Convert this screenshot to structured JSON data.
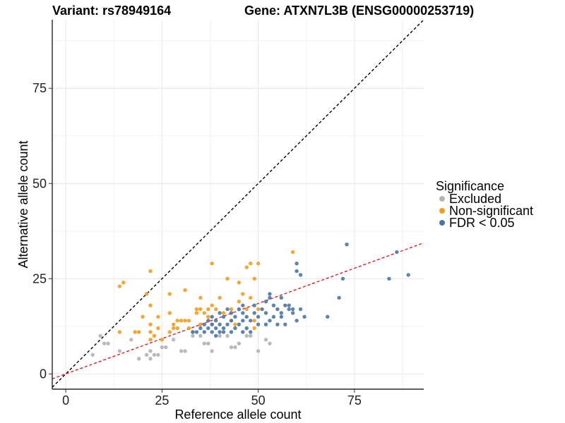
{
  "chart_data": {
    "type": "scatter",
    "title_left": "Variant: rs78949164",
    "title_right": "Gene: ATXN7L3B (ENSG00000253719)",
    "xlabel": "Reference allele count",
    "ylabel": "Alternative allele count",
    "xlim": [
      -3.5,
      93
    ],
    "ylim": [
      -4,
      93
    ],
    "xticks": [
      0,
      25,
      50,
      75
    ],
    "yticks": [
      0,
      25,
      50,
      75
    ],
    "grid": true,
    "reference_lines": [
      {
        "name": "identity",
        "slope": 1,
        "intercept": 0,
        "color": "#000000",
        "style": "dashed"
      },
      {
        "name": "fit",
        "slope": 0.37,
        "intercept": 0,
        "color": "#e41a1c",
        "style": "dashed"
      }
    ],
    "legend": {
      "title": "Significance",
      "position": "right",
      "entries": [
        {
          "label": "Excluded",
          "color": "#b3b3b3"
        },
        {
          "label": "Non-significant",
          "color": "#f39c1b"
        },
        {
          "label": "FDR < 0.05",
          "color": "#4a77a8"
        }
      ]
    },
    "series": [
      {
        "name": "Excluded",
        "color": "#b3b3b3",
        "points": [
          [
            7,
            5
          ],
          [
            9,
            10
          ],
          [
            10,
            8
          ],
          [
            11,
            8
          ],
          [
            14,
            6
          ],
          [
            17,
            9
          ],
          [
            19,
            4
          ],
          [
            21,
            5
          ],
          [
            22,
            4
          ],
          [
            22,
            6
          ],
          [
            23,
            5
          ],
          [
            24,
            5
          ],
          [
            25,
            7
          ],
          [
            26,
            7
          ],
          [
            28,
            9
          ],
          [
            30,
            6
          ],
          [
            31,
            6
          ],
          [
            33,
            10
          ],
          [
            35,
            10
          ],
          [
            36,
            8
          ],
          [
            37,
            8
          ],
          [
            38,
            6
          ],
          [
            40,
            10
          ],
          [
            42,
            10
          ],
          [
            43,
            7
          ],
          [
            44,
            7
          ],
          [
            45,
            8
          ],
          [
            47,
            10
          ],
          [
            48,
            10
          ],
          [
            50,
            6
          ],
          [
            52,
            9
          ],
          [
            53,
            8
          ]
        ]
      },
      {
        "name": "Non-significant",
        "color": "#f39c1b",
        "points": [
          [
            14,
            23
          ],
          [
            15,
            24
          ],
          [
            14,
            11
          ],
          [
            18,
            11
          ],
          [
            19,
            11
          ],
          [
            20,
            15
          ],
          [
            21,
            21
          ],
          [
            22,
            27
          ],
          [
            22,
            13
          ],
          [
            22,
            11
          ],
          [
            22,
            18
          ],
          [
            23,
            10
          ],
          [
            24,
            15
          ],
          [
            22,
            9
          ],
          [
            24,
            12
          ],
          [
            25,
            9
          ],
          [
            27,
            11
          ],
          [
            27,
            21
          ],
          [
            27,
            16
          ],
          [
            28,
            13
          ],
          [
            28,
            12
          ],
          [
            29,
            14
          ],
          [
            29,
            12
          ],
          [
            30,
            14
          ],
          [
            31,
            14
          ],
          [
            31,
            22
          ],
          [
            32,
            14
          ],
          [
            32,
            12
          ],
          [
            33,
            11
          ],
          [
            34,
            17
          ],
          [
            34,
            16
          ],
          [
            35,
            13
          ],
          [
            35,
            17
          ],
          [
            35,
            20
          ],
          [
            36,
            16
          ],
          [
            37,
            15
          ],
          [
            37,
            17
          ],
          [
            38,
            13
          ],
          [
            38,
            29
          ],
          [
            38,
            18
          ],
          [
            39,
            17
          ],
          [
            40,
            20
          ],
          [
            41,
            16
          ],
          [
            42,
            25
          ],
          [
            43,
            17
          ],
          [
            43,
            14
          ],
          [
            44,
            13
          ],
          [
            45,
            24
          ],
          [
            45,
            19
          ],
          [
            46,
            21
          ],
          [
            47,
            28
          ],
          [
            47,
            17
          ],
          [
            48,
            29
          ],
          [
            48,
            20
          ],
          [
            49,
            25
          ],
          [
            50,
            29
          ],
          [
            50,
            17
          ],
          [
            49,
            14
          ],
          [
            49,
            12
          ],
          [
            59,
            32
          ]
        ]
      },
      {
        "name": "FDR < 0.05",
        "color": "#4a77a8",
        "points": [
          [
            33,
            11
          ],
          [
            34,
            11
          ],
          [
            35,
            12
          ],
          [
            36,
            11
          ],
          [
            36,
            13
          ],
          [
            37,
            12
          ],
          [
            37,
            14
          ],
          [
            38,
            11
          ],
          [
            38,
            13
          ],
          [
            38,
            15
          ],
          [
            39,
            10
          ],
          [
            39,
            12
          ],
          [
            39,
            14
          ],
          [
            40,
            11
          ],
          [
            40,
            13
          ],
          [
            40,
            16
          ],
          [
            41,
            12
          ],
          [
            41,
            11
          ],
          [
            41,
            15
          ],
          [
            42,
            13
          ],
          [
            42,
            17
          ],
          [
            43,
            11
          ],
          [
            43,
            14
          ],
          [
            43,
            16
          ],
          [
            44,
            12
          ],
          [
            44,
            15
          ],
          [
            45,
            13
          ],
          [
            45,
            17
          ],
          [
            46,
            11
          ],
          [
            46,
            14
          ],
          [
            46,
            16
          ],
          [
            46,
            18
          ],
          [
            47,
            12
          ],
          [
            47,
            15
          ],
          [
            48,
            11
          ],
          [
            48,
            14
          ],
          [
            49,
            16
          ],
          [
            49,
            18
          ],
          [
            50,
            13
          ],
          [
            50,
            15
          ],
          [
            51,
            17
          ],
          [
            52,
            19
          ],
          [
            52,
            16
          ],
          [
            52,
            13
          ],
          [
            53,
            14
          ],
          [
            53,
            21
          ],
          [
            53,
            20
          ],
          [
            54,
            15
          ],
          [
            54,
            18
          ],
          [
            55,
            17
          ],
          [
            55,
            13
          ],
          [
            56,
            15
          ],
          [
            56,
            20
          ],
          [
            56,
            16
          ],
          [
            57,
            18
          ],
          [
            57,
            13
          ],
          [
            58,
            17
          ],
          [
            58,
            18
          ],
          [
            59,
            17
          ],
          [
            59,
            16
          ],
          [
            60,
            14
          ],
          [
            60,
            29
          ],
          [
            60,
            27
          ],
          [
            61,
            17
          ],
          [
            61,
            26
          ],
          [
            62,
            15
          ],
          [
            68,
            15
          ],
          [
            71,
            20
          ],
          [
            72,
            25
          ],
          [
            73,
            34
          ],
          [
            84,
            25
          ],
          [
            86,
            32
          ],
          [
            89,
            26
          ]
        ]
      }
    ]
  }
}
